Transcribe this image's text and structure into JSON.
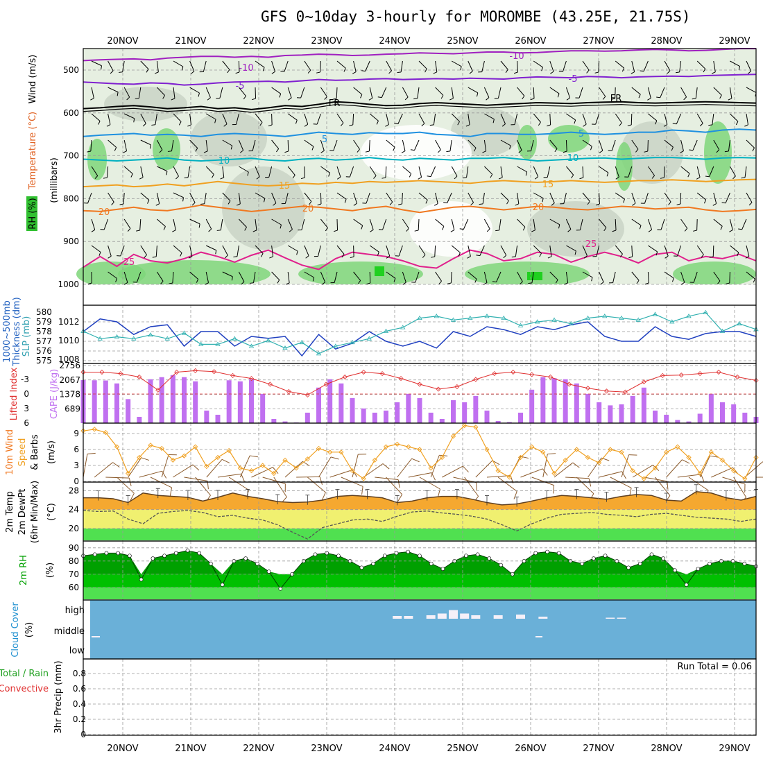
{
  "title": "GFS 0~10day 3-hourly for MOROMBE (43.25E, 21.75S)",
  "dates": [
    "20NOV",
    "21NOV",
    "22NOV",
    "23NOV",
    "24NOV",
    "25NOV",
    "26NOV",
    "27NOV",
    "28NOV",
    "29NOV"
  ],
  "chart_data": [
    {
      "type": "heatmap",
      "panel": "upper-air",
      "ylabel": "(millibars)",
      "left_labels": [
        "RH (%)",
        "Temperature (°C)",
        "Wind (m/s)"
      ],
      "yticks": [
        500,
        600,
        700,
        800,
        900,
        1000
      ],
      "ylim": [
        450,
        1000
      ],
      "isotherm_labels": [
        "-10",
        "-5",
        "FR",
        "5",
        "10",
        "15",
        "20",
        "25"
      ],
      "isotherms": [
        {
          "label": "-10",
          "color": "#a020c0",
          "p": [
            478,
            476,
            475,
            474,
            476,
            472,
            470,
            468,
            468,
            470,
            468,
            470,
            466,
            465,
            463,
            464,
            466,
            465,
            463,
            462,
            460,
            461,
            462,
            460,
            458,
            458,
            460,
            459,
            457,
            455,
            455,
            456,
            455,
            453,
            452,
            453,
            455,
            454,
            452,
            450,
            450
          ]
        },
        {
          "label": "-5",
          "color": "#8020d0",
          "p": [
            528,
            530,
            532,
            533,
            530,
            531,
            535,
            533,
            530,
            528,
            527,
            526,
            528,
            525,
            522,
            524,
            523,
            521,
            520,
            522,
            521,
            520,
            521,
            519,
            520,
            521,
            518,
            516,
            517,
            518,
            515,
            516,
            518,
            516,
            515,
            514,
            515,
            513,
            512,
            511,
            510
          ]
        },
        {
          "label": "FR",
          "color": "#000000",
          "p": [
            590,
            588,
            585,
            583,
            586,
            590,
            588,
            585,
            590,
            588,
            592,
            588,
            583,
            585,
            580,
            574,
            576,
            580,
            583,
            582,
            578,
            576,
            578,
            580,
            582,
            580,
            578,
            576,
            577,
            578,
            576,
            575,
            574,
            576,
            577,
            576,
            575,
            574,
            575,
            576,
            577
          ]
        },
        {
          "label": "5",
          "color": "#1e90e0",
          "p": [
            655,
            652,
            650,
            648,
            652,
            650,
            652,
            655,
            650,
            648,
            650,
            652,
            655,
            650,
            645,
            648,
            650,
            646,
            648,
            648,
            645,
            650,
            652,
            655,
            648,
            648,
            650,
            650,
            648,
            645,
            648,
            650,
            648,
            645,
            645,
            640,
            642,
            645,
            640,
            638,
            640
          ]
        },
        {
          "label": "10",
          "color": "#00b0c0",
          "p": [
            708,
            710,
            712,
            710,
            708,
            705,
            710,
            712,
            710,
            708,
            706,
            710,
            712,
            708,
            706,
            710,
            708,
            704,
            708,
            710,
            706,
            708,
            710,
            706,
            706,
            704,
            708,
            712,
            710,
            708,
            706,
            705,
            708,
            706,
            704,
            704,
            706,
            708,
            705,
            704,
            705
          ]
        },
        {
          "label": "15",
          "color": "#f0a020",
          "p": [
            772,
            770,
            768,
            772,
            770,
            766,
            770,
            765,
            760,
            764,
            768,
            770,
            768,
            764,
            766,
            762,
            764,
            760,
            762,
            760,
            758,
            760,
            762,
            764,
            760,
            758,
            760,
            762,
            760,
            758,
            760,
            762,
            760,
            758,
            758,
            756,
            758,
            760,
            758,
            756,
            755
          ]
        },
        {
          "label": "20",
          "color": "#f07820",
          "p": [
            828,
            830,
            825,
            820,
            826,
            828,
            822,
            815,
            820,
            825,
            830,
            826,
            822,
            818,
            820,
            824,
            828,
            822,
            818,
            826,
            832,
            826,
            820,
            818,
            822,
            826,
            822,
            818,
            820,
            824,
            826,
            822,
            818,
            820,
            824,
            822,
            820,
            826,
            830,
            828,
            825
          ]
        },
        {
          "label": "25",
          "color": "#e0208c",
          "p": [
            960,
            935,
            958,
            930,
            945,
            950,
            940,
            925,
            935,
            948,
            932,
            920,
            938,
            955,
            965,
            940,
            925,
            930,
            935,
            945,
            958,
            962,
            940,
            920,
            928,
            945,
            940,
            925,
            930,
            948,
            935,
            925,
            935,
            950,
            930,
            925,
            945,
            935,
            940,
            930,
            945
          ]
        }
      ]
    },
    {
      "type": "line",
      "panel": "thickness-slp",
      "left_labels": [
        "1000~500mb",
        "Thickness (dm)",
        "SLP (mb)"
      ],
      "yticks_left": [
        575,
        576,
        577,
        578,
        579,
        580
      ],
      "yticks_right": [
        1008,
        1010,
        1012
      ],
      "series": [
        {
          "name": "1000~500mb Thickness (dm)",
          "color": "#2040c0",
          "values": [
            578,
            579.3,
            579.0,
            577.7,
            578.5,
            578.7,
            576.5,
            578.0,
            578.0,
            576.5,
            577.5,
            577.3,
            577.5,
            575.5,
            577.7,
            576.2,
            576.8,
            578.0,
            577.0,
            576.5,
            577.0,
            576.3,
            578.0,
            577.5,
            578.5,
            578.2,
            577.7,
            578.5,
            578.2,
            578.7,
            579.0,
            577.5,
            577.0,
            577.0,
            578.5,
            577.5,
            577.2,
            577.8,
            578.0,
            578.0,
            577.5
          ]
        },
        {
          "name": "SLP (mb)",
          "color": "#30b0b0",
          "values": [
            1011,
            1010.2,
            1010.4,
            1010.2,
            1010.6,
            1010.2,
            1010.8,
            1009.6,
            1009.6,
            1010.2,
            1009.4,
            1010.0,
            1009.2,
            1009.8,
            1008.6,
            1009.4,
            1009.8,
            1010.2,
            1011.0,
            1011.4,
            1012.4,
            1012.6,
            1012.2,
            1012.4,
            1012.6,
            1012.4,
            1011.6,
            1012.0,
            1012.2,
            1011.8,
            1012.4,
            1012.6,
            1012.4,
            1012.2,
            1012.8,
            1012.0,
            1012.6,
            1013.0,
            1011.0,
            1011.8,
            1011.2
          ]
        }
      ]
    },
    {
      "type": "bar",
      "panel": "cape-li",
      "left_labels": [
        "Lifted Index",
        "CAPE (J/kg)"
      ],
      "yticks_left": [
        6,
        3,
        0,
        -3
      ],
      "yticks_right": [
        689,
        1378,
        2067,
        2756
      ],
      "series": [
        {
          "name": "CAPE (J/kg)",
          "color": "#c070f0",
          "values": [
            2060,
            2050,
            2040,
            1900,
            1150,
            300,
            2100,
            2200,
            2300,
            2200,
            2000,
            600,
            400,
            2050,
            2000,
            2100,
            1400,
            200,
            80,
            30,
            500,
            1700,
            2100,
            1900,
            1200,
            700,
            500,
            600,
            1000,
            1400,
            1200,
            500,
            200,
            1100,
            1000,
            1300,
            600,
            100,
            50,
            500,
            1600,
            2200,
            2150,
            2100,
            1900,
            1400,
            1000,
            850,
            900,
            1300,
            1700,
            600,
            400,
            150,
            80,
            450,
            1400,
            1000,
            900,
            500,
            300
          ]
        },
        {
          "name": "Lifted Index",
          "color": "#e03030",
          "values": [
            -4.5,
            -4.5,
            -4.2,
            -3.5,
            -0.8,
            -4.5,
            -4.8,
            -4.6,
            -3.8,
            -3.2,
            -2.0,
            -0.5,
            0.2,
            -2.0,
            -3.5,
            -4.5,
            -4.2,
            -3.2,
            -2.0,
            -1.0,
            -1.5,
            -3.0,
            -4.2,
            -4.5,
            -4.0,
            -3.5,
            -2.0,
            -1.2,
            -0.6,
            -0.4,
            -2.5,
            -3.8,
            -3.9,
            -4.2,
            -4.5,
            -3.5,
            -2.8
          ]
        }
      ]
    },
    {
      "type": "line",
      "panel": "10m-wind",
      "left_labels": [
        "10m Wind",
        "Speed",
        "& Barbs",
        "(m/s)"
      ],
      "yticks": [
        0,
        3,
        6,
        9
      ],
      "series": [
        {
          "name": "10m Wind Speed",
          "color": "#f0a020",
          "values": [
            9.5,
            9.8,
            9.2,
            6.5,
            1.5,
            4.5,
            6.8,
            6.2,
            4.0,
            4.8,
            6.5,
            2.8,
            4.5,
            5.8,
            2.5,
            2.0,
            3.0,
            1.5,
            4.0,
            2.5,
            4.2,
            6.2,
            5.5,
            5.5,
            2.0,
            0.5,
            4.0,
            6.5,
            7.0,
            6.5,
            6.0,
            2.5,
            4.5,
            8.5,
            10.5,
            10.2,
            6.0,
            2.0,
            0.8,
            4.5,
            6.5,
            5.5,
            1.5,
            4.0,
            6.0,
            4.5,
            3.5,
            6.0,
            5.5,
            2.0,
            0.5,
            2.5,
            5.5,
            6.5,
            4.5,
            1.5,
            5.5,
            4.0,
            2.0,
            0.5,
            4.5
          ]
        }
      ]
    },
    {
      "type": "area",
      "panel": "2m-temp",
      "left_labels": [
        "2m Temp",
        "2m DewPt",
        "(6hr Min/Max)",
        "(°C)"
      ],
      "yticks": [
        20,
        24,
        28
      ],
      "series": [
        {
          "name": "2m Temp",
          "color": "#f0a030",
          "values": [
            26.5,
            26.5,
            26.3,
            25.5,
            27.5,
            27.0,
            26.8,
            26.6,
            25.8,
            26.6,
            27.5,
            26.8,
            26.3,
            25.7,
            25.5,
            25.6,
            26.0,
            26.8,
            27.0,
            26.8,
            26.5,
            25.5,
            25.8,
            26.5,
            26.8,
            26.8,
            26.2,
            25.5,
            25.0,
            25.2,
            25.8,
            26.5,
            27.0,
            26.8,
            26.5,
            26.2,
            26.8,
            27.2,
            27.0,
            26.0,
            25.8,
            27.8,
            27.5,
            26.5,
            26.0,
            26.8
          ]
        },
        {
          "name": "2m DewPt",
          "color": "#555555",
          "values": [
            23.8,
            23.6,
            23.7,
            22.0,
            21.0,
            23.2,
            23.6,
            23.8,
            23.4,
            22.5,
            22.8,
            22.2,
            21.8,
            20.8,
            19.2,
            17.8,
            20.2,
            21.0,
            21.8,
            22.0,
            21.5,
            22.6,
            23.5,
            23.7,
            23.3,
            23.0,
            22.6,
            22.0,
            20.8,
            19.5,
            21.0,
            22.2,
            23.0,
            23.2,
            23.4,
            23.0,
            22.8,
            22.5,
            23.0,
            23.2,
            22.8,
            22.4,
            22.2,
            22.0,
            21.5,
            22.0
          ]
        }
      ]
    },
    {
      "type": "area",
      "panel": "2m-rh",
      "left_labels": [
        "2m RH",
        "(%)"
      ],
      "yticks": [
        60,
        70,
        80,
        90
      ],
      "series": [
        {
          "name": "2m RH",
          "color": "#00a000",
          "values": [
            84,
            85,
            86,
            86,
            84,
            66,
            82,
            84,
            86,
            88,
            86,
            78,
            62,
            80,
            82,
            78,
            72,
            59,
            70,
            80,
            85,
            86,
            84,
            80,
            75,
            78,
            84,
            86,
            87,
            84,
            78,
            74,
            80,
            84,
            85,
            82,
            77,
            70,
            80,
            86,
            87,
            86,
            80,
            78,
            82,
            84,
            80,
            75,
            78,
            85,
            82,
            73,
            62,
            74,
            78,
            80,
            80,
            78,
            76
          ]
        }
      ]
    },
    {
      "type": "bar",
      "panel": "cloud-cover",
      "left_labels": [
        "Cloud Cover",
        "(%)"
      ],
      "yticks": [
        "high",
        "middle",
        "low"
      ],
      "series": [
        {
          "name": "high cloud",
          "color": "#ffffff",
          "values": [
            0,
            0,
            0,
            0,
            0,
            0,
            0,
            0,
            0,
            0,
            0,
            0,
            0,
            0,
            0,
            0,
            0,
            0,
            0,
            0,
            0,
            0,
            0,
            0,
            0,
            0,
            0,
            0,
            8,
            8,
            0,
            10,
            15,
            25,
            15,
            10,
            0,
            10,
            0,
            12,
            0,
            6,
            0,
            0,
            0,
            0,
            0,
            3,
            3,
            0,
            0,
            0,
            0,
            0,
            0,
            0,
            0,
            0,
            0,
            0,
            0
          ]
        }
      ]
    },
    {
      "type": "bar",
      "panel": "precip",
      "left_labels": [
        "Total / Rain",
        "Convective",
        "3hr Precip (mm)"
      ],
      "yticks": [
        0,
        0.2,
        0.4,
        0.6,
        0.8
      ],
      "ylim": [
        0,
        1.0
      ],
      "run_total": "Run Total = 0.06",
      "series": [
        {
          "name": "Total / Rain",
          "color": "#20a020",
          "values": []
        },
        {
          "name": "Convective",
          "color": "#e03030",
          "values": []
        }
      ]
    }
  ]
}
